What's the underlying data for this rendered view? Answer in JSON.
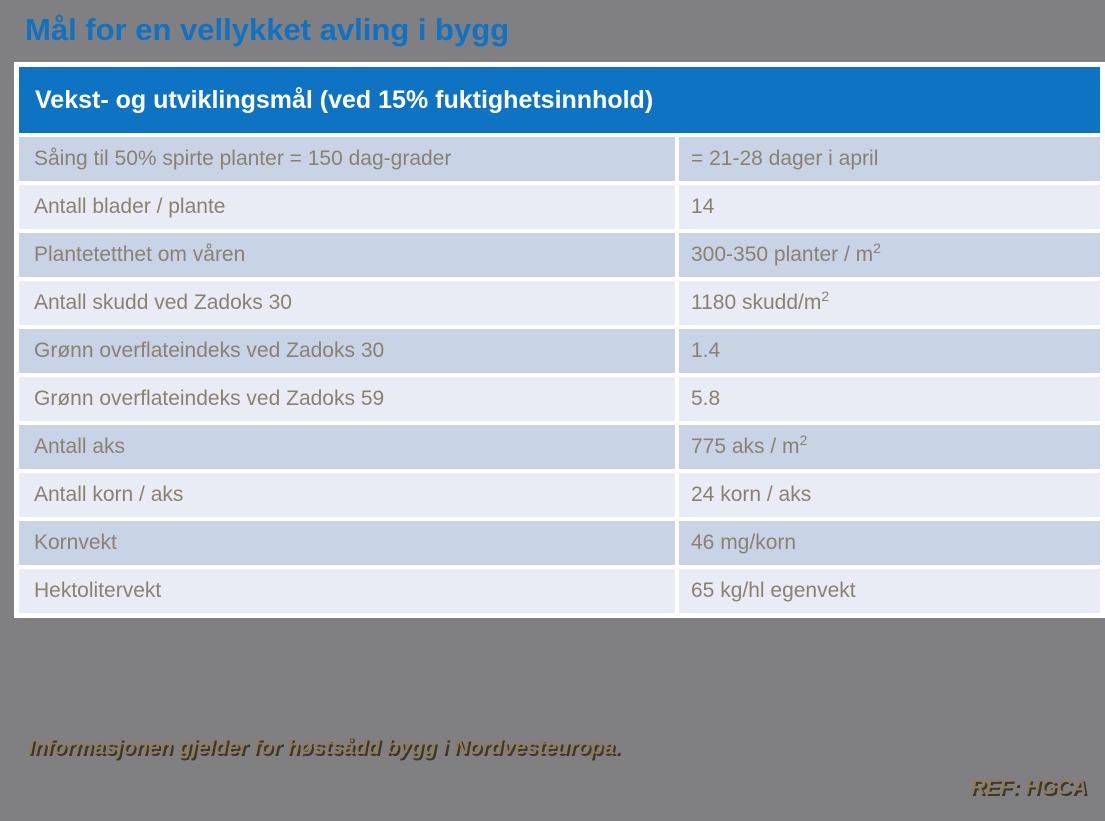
{
  "slide": {
    "title": "Mål for en vellykket avling i bygg",
    "footer_note": "Informasjonen gjelder for høstsådd bygg i Nordvesteuropa.",
    "reference": "REF: HGCA"
  },
  "table": {
    "header": "Vekst- og utviklingsmål (ved 15% fuktighetsinnhold)",
    "rows": [
      {
        "label": "Såing til 50% spirte planter = 150 dag-grader",
        "value": "= 21-28 dager i april",
        "sup": ""
      },
      {
        "label": "Antall blader / plante",
        "value": "14",
        "sup": ""
      },
      {
        "label": "Plantetetthet om våren",
        "value": "300-350 planter / m",
        "sup": "2"
      },
      {
        "label": "Antall skudd ved Zadoks 30",
        "value": "1180 skudd/m",
        "sup": "2"
      },
      {
        "label": "Grønn overflateindeks ved Zadoks 30",
        "value": "1.4",
        "sup": ""
      },
      {
        "label": "Grønn overflateindeks ved Zadoks 59",
        "value": "5.8",
        "sup": ""
      },
      {
        "label": "Antall aks",
        "value": "775 aks / m",
        "sup": "2"
      },
      {
        "label": "Antall korn / aks",
        "value": "24 korn / aks",
        "sup": ""
      },
      {
        "label": "Kornvekt",
        "value": "46 mg/korn",
        "sup": ""
      },
      {
        "label": "Hektolitervekt",
        "value": "65 kg/hl egenvekt",
        "sup": ""
      }
    ]
  },
  "colors": {
    "background": "#808082",
    "title_text": "#1172c3",
    "table_header_bg": "#0d73c2",
    "table_header_text": "#ffffff",
    "table_border": "#ffffff",
    "row_dark_bg": "#c9d3e6",
    "row_light_bg": "#e9ecf5",
    "row_text": "#8b8170",
    "footer_text": "#8d7c5e"
  }
}
